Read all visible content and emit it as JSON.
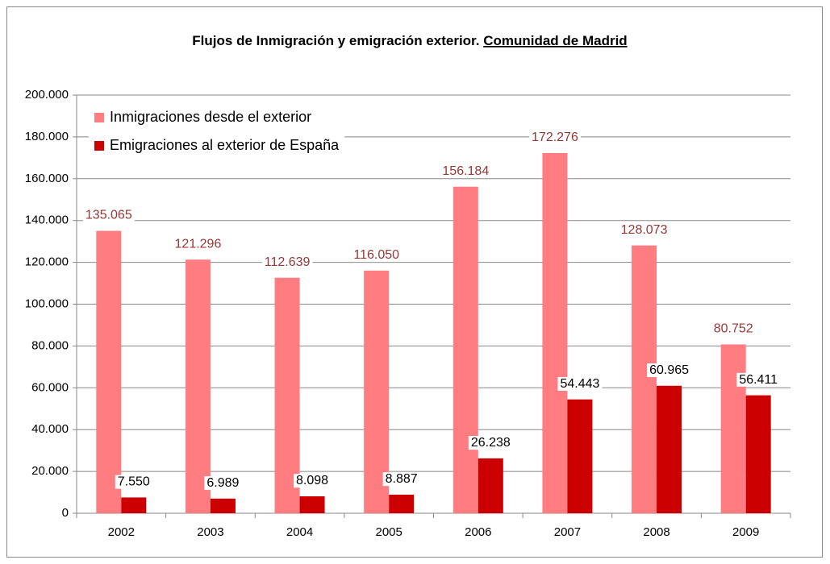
{
  "chart_data": {
    "type": "bar",
    "title_parts": [
      "Flujos de Inmigración y emigración  exterior. ",
      "Comunidad de Madrid"
    ],
    "categories": [
      "2002",
      "2003",
      "2004",
      "2005",
      "2006",
      "2007",
      "2008",
      "2009"
    ],
    "series": [
      {
        "name": "Inmigraciones desde el exterior",
        "color": "#ff7c80",
        "label_color": "#953735",
        "values": [
          135065,
          121296,
          112639,
          116050,
          156184,
          172276,
          128073,
          80752
        ],
        "value_labels": [
          "135.065",
          "121.296",
          "112.639",
          "116.050",
          "156.184",
          "172.276",
          "128.073",
          "80.752"
        ]
      },
      {
        "name": "Emigraciones al exterior de España",
        "color": "#cc0000",
        "label_color": "#000000",
        "values": [
          7550,
          6989,
          8098,
          8887,
          26238,
          54443,
          60965,
          56411
        ],
        "value_labels": [
          "7.550",
          "6.989",
          "8.098",
          "8.887",
          "26.238",
          "54.443",
          "60.965",
          "56.411"
        ]
      }
    ],
    "ylim": [
      0,
      200000
    ],
    "yticks": [
      0,
      {
        "value": 20000,
        "label": "20.000"
      },
      {
        "value": 40000,
        "label": "40.000"
      },
      {
        "value": 60000,
        "label": "60.000"
      },
      {
        "value": 80000,
        "label": "80.000"
      },
      {
        "value": 100000,
        "label": "100.000"
      },
      {
        "value": 120000,
        "label": "120.000"
      },
      {
        "value": 140000,
        "label": "140.000"
      },
      {
        "value": 160000,
        "label": "160.000"
      },
      {
        "value": 180000,
        "label": "180.000"
      },
      {
        "value": 200000,
        "label": "200.000"
      }
    ],
    "grid": true,
    "legend": "top-left"
  }
}
